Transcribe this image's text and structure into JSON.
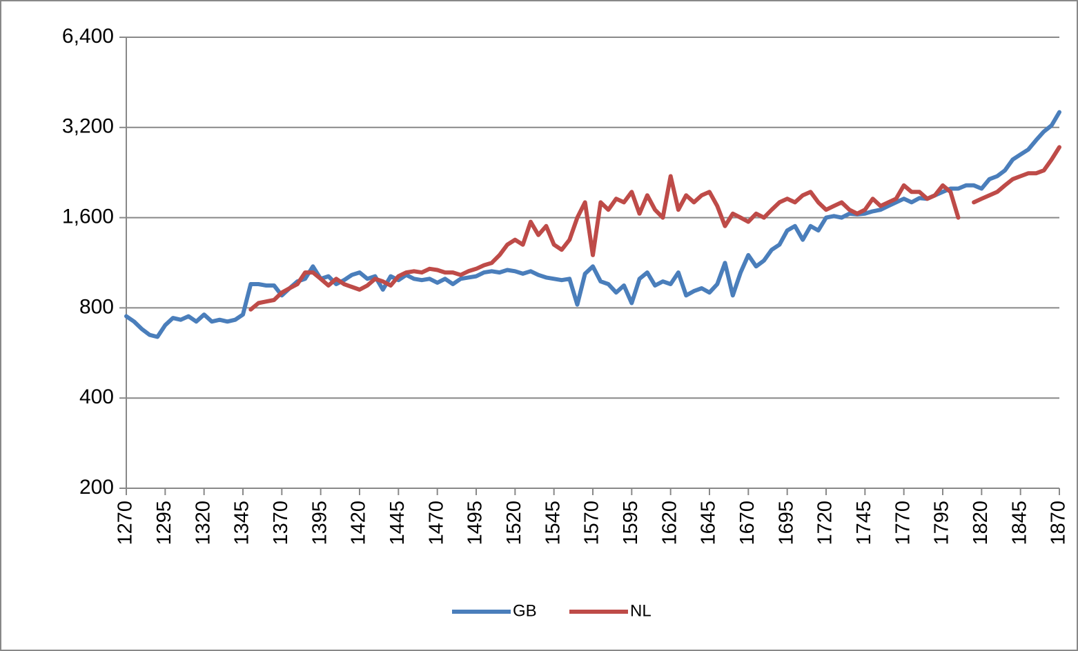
{
  "chart_data": {
    "type": "line",
    "x": [
      1270,
      1275,
      1280,
      1285,
      1290,
      1295,
      1300,
      1305,
      1310,
      1315,
      1320,
      1325,
      1330,
      1335,
      1340,
      1345,
      1350,
      1355,
      1360,
      1365,
      1370,
      1375,
      1380,
      1385,
      1390,
      1395,
      1400,
      1405,
      1410,
      1415,
      1420,
      1425,
      1430,
      1435,
      1440,
      1445,
      1450,
      1455,
      1460,
      1465,
      1470,
      1475,
      1480,
      1485,
      1490,
      1495,
      1500,
      1505,
      1510,
      1515,
      1520,
      1525,
      1530,
      1535,
      1540,
      1545,
      1550,
      1555,
      1560,
      1565,
      1570,
      1575,
      1580,
      1585,
      1590,
      1595,
      1600,
      1605,
      1610,
      1615,
      1620,
      1625,
      1630,
      1635,
      1640,
      1645,
      1650,
      1655,
      1660,
      1665,
      1670,
      1675,
      1680,
      1685,
      1690,
      1695,
      1700,
      1705,
      1710,
      1715,
      1720,
      1725,
      1730,
      1735,
      1740,
      1745,
      1750,
      1755,
      1760,
      1765,
      1770,
      1775,
      1780,
      1785,
      1790,
      1795,
      1800,
      1805,
      1810,
      1815,
      1820,
      1825,
      1830,
      1835,
      1840,
      1845,
      1850,
      1855,
      1860,
      1865,
      1870
    ],
    "series": [
      {
        "name": "GB",
        "color": "#4a7ebb",
        "values": [
          750,
          720,
          680,
          650,
          640,
          700,
          740,
          730,
          750,
          720,
          760,
          720,
          730,
          720,
          730,
          760,
          960,
          960,
          950,
          950,
          880,
          930,
          980,
          1000,
          1100,
          1000,
          1020,
          960,
          990,
          1030,
          1050,
          1000,
          1020,
          920,
          1020,
          990,
          1030,
          1000,
          990,
          1000,
          970,
          1000,
          960,
          1000,
          1010,
          1020,
          1050,
          1060,
          1050,
          1070,
          1060,
          1040,
          1060,
          1030,
          1010,
          1000,
          990,
          1000,
          820,
          1040,
          1100,
          980,
          960,
          900,
          950,
          830,
          1000,
          1050,
          950,
          980,
          960,
          1050,
          880,
          910,
          930,
          900,
          960,
          1130,
          880,
          1050,
          1200,
          1100,
          1150,
          1250,
          1300,
          1450,
          1500,
          1350,
          1500,
          1450,
          1600,
          1620,
          1600,
          1650,
          1640,
          1650,
          1680,
          1700,
          1750,
          1800,
          1850,
          1800,
          1860,
          1850,
          1900,
          1950,
          2000,
          2000,
          2050,
          2050,
          2000,
          2150,
          2200,
          2300,
          2500,
          2600,
          2700,
          2900,
          3100,
          3250,
          3600
        ]
      },
      {
        "name": "NL",
        "color": "#be4b48",
        "values": [
          null,
          null,
          null,
          null,
          null,
          null,
          null,
          null,
          null,
          null,
          null,
          null,
          null,
          null,
          null,
          null,
          790,
          830,
          840,
          850,
          900,
          930,
          960,
          1050,
          1050,
          1000,
          950,
          1000,
          960,
          940,
          920,
          950,
          1000,
          980,
          950,
          1020,
          1050,
          1060,
          1050,
          1080,
          1070,
          1050,
          1050,
          1030,
          1060,
          1080,
          1110,
          1130,
          1200,
          1300,
          1350,
          1300,
          1550,
          1400,
          1500,
          1300,
          1250,
          1350,
          1600,
          1800,
          1200,
          1800,
          1700,
          1850,
          1800,
          1950,
          1650,
          1900,
          1700,
          1600,
          2200,
          1700,
          1900,
          1800,
          1900,
          1950,
          1750,
          1500,
          1650,
          1600,
          1550,
          1650,
          1600,
          1700,
          1800,
          1850,
          1800,
          1900,
          1950,
          1800,
          1700,
          1750,
          1800,
          1700,
          1650,
          1700,
          1850,
          1750,
          1800,
          1850,
          2050,
          1950,
          1950,
          1850,
          1900,
          2050,
          1950,
          1600,
          null,
          1800,
          1850,
          1900,
          1950,
          2050,
          2150,
          2200,
          2250,
          2250,
          2300,
          2500,
          2750
        ]
      }
    ],
    "xlim": [
      1270,
      1870
    ],
    "xticks": [
      1270,
      1295,
      1320,
      1345,
      1370,
      1395,
      1420,
      1445,
      1470,
      1495,
      1520,
      1545,
      1570,
      1595,
      1620,
      1645,
      1670,
      1695,
      1720,
      1745,
      1770,
      1795,
      1820,
      1845,
      1870
    ],
    "ylim": [
      200,
      6400
    ],
    "yticks": [
      200,
      400,
      800,
      {
        "value": 1600,
        "label": "1,600"
      },
      {
        "value": 3200,
        "label": "3,200"
      },
      {
        "value": 6400,
        "label": "6,400"
      }
    ],
    "y_scale": "log",
    "grid": true,
    "legend": "bottom"
  }
}
